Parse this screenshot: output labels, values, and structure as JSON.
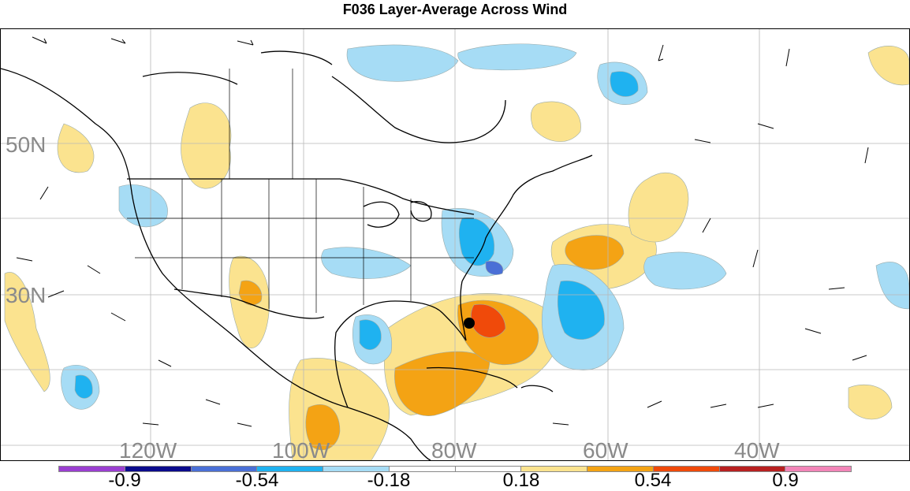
{
  "title": "F036 Layer-Average Across Wind",
  "map": {
    "lat_labels": [
      "50N",
      "30N"
    ],
    "lon_labels": [
      "120W",
      "100W",
      "80W",
      "60W",
      "40W"
    ]
  },
  "colorbar": {
    "colors": [
      "#9b3fd1",
      "#0a0a8c",
      "#4a6fd6",
      "#1fb2f0",
      "#a6dcf5",
      "#ffffff",
      "#ffffff",
      "#fbe38f",
      "#f4a314",
      "#f04a0a",
      "#b82020",
      "#f285b8"
    ],
    "tick_labels": [
      "-0.9",
      "-0.54",
      "-0.18",
      "0.18",
      "0.54",
      "0.9"
    ]
  }
}
